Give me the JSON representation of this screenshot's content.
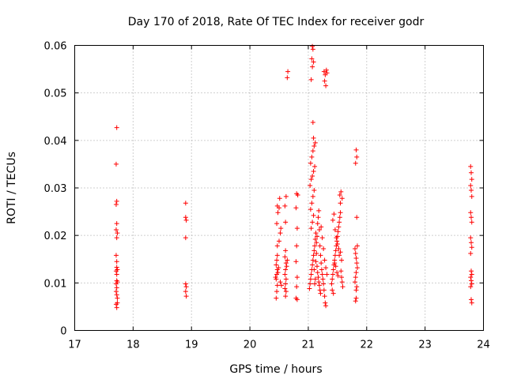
{
  "chart_data": {
    "type": "scatter",
    "title": "Day 170 of 2018, Rate Of TEC Index for receiver godr",
    "xlabel": "GPS time / hours",
    "ylabel": "ROTI / TECUs",
    "xlim": [
      17,
      24
    ],
    "ylim": [
      0,
      0.06
    ],
    "grid": true,
    "x_ticks": [
      "17",
      "18",
      "19",
      "20",
      "21",
      "22",
      "23",
      "24"
    ],
    "y_ticks": [
      "0",
      "0.01",
      "0.02",
      "0.03",
      "0.04",
      "0.05",
      "0.06"
    ],
    "marker": "+",
    "color": "#ff0000",
    "series": [
      {
        "name": "ROTI",
        "points": [
          [
            17.72,
            0.0427
          ],
          [
            17.71,
            0.035
          ],
          [
            17.72,
            0.0272
          ],
          [
            17.71,
            0.0265
          ],
          [
            17.72,
            0.0225
          ],
          [
            17.71,
            0.0212
          ],
          [
            17.73,
            0.0205
          ],
          [
            17.72,
            0.0195
          ],
          [
            17.71,
            0.0158
          ],
          [
            17.72,
            0.0145
          ],
          [
            17.72,
            0.0133
          ],
          [
            17.71,
            0.0125
          ],
          [
            17.73,
            0.0128
          ],
          [
            17.72,
            0.0118
          ],
          [
            17.72,
            0.0105
          ],
          [
            17.71,
            0.0098
          ],
          [
            17.73,
            0.0102
          ],
          [
            17.72,
            0.009
          ],
          [
            17.71,
            0.0082
          ],
          [
            17.72,
            0.0075
          ],
          [
            17.73,
            0.0068
          ],
          [
            17.71,
            0.0055
          ],
          [
            17.72,
            0.0048
          ],
          [
            17.73,
            0.0058
          ],
          [
            18.9,
            0.0268
          ],
          [
            18.9,
            0.0238
          ],
          [
            18.91,
            0.0232
          ],
          [
            18.9,
            0.0195
          ],
          [
            18.9,
            0.0098
          ],
          [
            18.91,
            0.0092
          ],
          [
            18.9,
            0.0082
          ],
          [
            18.91,
            0.0072
          ],
          [
            20.45,
            0.0068
          ],
          [
            20.46,
            0.0082
          ],
          [
            20.47,
            0.0095
          ],
          [
            20.45,
            0.0108
          ],
          [
            20.46,
            0.0118
          ],
          [
            20.47,
            0.0128
          ],
          [
            20.45,
            0.0138
          ],
          [
            20.46,
            0.0148
          ],
          [
            20.47,
            0.0158
          ],
          [
            20.48,
            0.0122
          ],
          [
            20.44,
            0.0112
          ],
          [
            20.49,
            0.0132
          ],
          [
            20.47,
            0.0178
          ],
          [
            20.46,
            0.0225
          ],
          [
            20.48,
            0.0248
          ],
          [
            20.47,
            0.0262
          ],
          [
            20.5,
            0.0258
          ],
          [
            20.51,
            0.0278
          ],
          [
            20.52,
            0.0205
          ],
          [
            20.53,
            0.0215
          ],
          [
            20.5,
            0.0188
          ],
          [
            20.52,
            0.0102
          ],
          [
            20.54,
            0.0095
          ],
          [
            20.6,
            0.0088
          ],
          [
            20.61,
            0.0098
          ],
          [
            20.62,
            0.0108
          ],
          [
            20.6,
            0.0118
          ],
          [
            20.61,
            0.0128
          ],
          [
            20.62,
            0.0142
          ],
          [
            20.6,
            0.0155
          ],
          [
            20.61,
            0.0168
          ],
          [
            20.63,
            0.0135
          ],
          [
            20.62,
            0.0082
          ],
          [
            20.61,
            0.0072
          ],
          [
            20.6,
            0.0262
          ],
          [
            20.62,
            0.0282
          ],
          [
            20.61,
            0.0228
          ],
          [
            20.64,
            0.0148
          ],
          [
            20.65,
            0.0545
          ],
          [
            20.64,
            0.0532
          ],
          [
            20.8,
            0.0288
          ],
          [
            20.82,
            0.0285
          ],
          [
            20.79,
            0.0258
          ],
          [
            20.81,
            0.0215
          ],
          [
            20.8,
            0.0178
          ],
          [
            20.79,
            0.0145
          ],
          [
            20.81,
            0.0112
          ],
          [
            20.8,
            0.0092
          ],
          [
            20.79,
            0.0068
          ],
          [
            20.81,
            0.0065
          ],
          [
            21.02,
            0.0088
          ],
          [
            21.03,
            0.0098
          ],
          [
            21.04,
            0.0108
          ],
          [
            21.05,
            0.0118
          ],
          [
            21.06,
            0.0128
          ],
          [
            21.07,
            0.0138
          ],
          [
            21.08,
            0.0148
          ],
          [
            21.09,
            0.0158
          ],
          [
            21.1,
            0.0168
          ],
          [
            21.11,
            0.0178
          ],
          [
            21.12,
            0.0192
          ],
          [
            21.13,
            0.0205
          ],
          [
            21.05,
            0.0215
          ],
          [
            21.07,
            0.0228
          ],
          [
            21.09,
            0.0242
          ],
          [
            21.04,
            0.0255
          ],
          [
            21.06,
            0.0268
          ],
          [
            21.08,
            0.0282
          ],
          [
            21.1,
            0.0295
          ],
          [
            21.03,
            0.0305
          ],
          [
            21.05,
            0.0318
          ],
          [
            21.07,
            0.0325
          ],
          [
            21.09,
            0.0335
          ],
          [
            21.11,
            0.0345
          ],
          [
            21.04,
            0.0352
          ],
          [
            21.06,
            0.0365
          ],
          [
            21.08,
            0.0378
          ],
          [
            21.1,
            0.0388
          ],
          [
            21.12,
            0.0395
          ],
          [
            21.09,
            0.0405
          ],
          [
            21.08,
            0.0438
          ],
          [
            21.05,
            0.0528
          ],
          [
            21.07,
            0.0555
          ],
          [
            21.06,
            0.0572
          ],
          [
            21.08,
            0.0592
          ],
          [
            21.07,
            0.0598
          ],
          [
            21.09,
            0.0565
          ],
          [
            21.14,
            0.0162
          ],
          [
            21.15,
            0.0135
          ],
          [
            21.16,
            0.0122
          ],
          [
            21.17,
            0.0112
          ],
          [
            21.18,
            0.0102
          ],
          [
            21.19,
            0.0095
          ],
          [
            21.2,
            0.0085
          ],
          [
            21.21,
            0.0078
          ],
          [
            21.13,
            0.0145
          ],
          [
            21.12,
            0.0108
          ],
          [
            21.11,
            0.0098
          ],
          [
            21.1,
            0.0128
          ],
          [
            21.14,
            0.0185
          ],
          [
            21.15,
            0.0198
          ],
          [
            21.16,
            0.0225
          ],
          [
            21.17,
            0.0238
          ],
          [
            21.18,
            0.0252
          ],
          [
            21.19,
            0.0212
          ],
          [
            21.2,
            0.0178
          ],
          [
            21.21,
            0.0158
          ],
          [
            21.22,
            0.0142
          ],
          [
            21.23,
            0.0128
          ],
          [
            21.24,
            0.0118
          ],
          [
            21.25,
            0.0108
          ],
          [
            21.26,
            0.0098
          ],
          [
            21.27,
            0.0085
          ],
          [
            21.28,
            0.0072
          ],
          [
            21.29,
            0.0058
          ],
          [
            21.3,
            0.0052
          ],
          [
            21.22,
            0.0218
          ],
          [
            21.24,
            0.0195
          ],
          [
            21.26,
            0.0172
          ],
          [
            21.28,
            0.0148
          ],
          [
            21.3,
            0.0132
          ],
          [
            21.32,
            0.0118
          ],
          [
            21.27,
            0.0545
          ],
          [
            21.29,
            0.0538
          ],
          [
            21.31,
            0.0548
          ],
          [
            21.28,
            0.0525
          ],
          [
            21.3,
            0.0515
          ],
          [
            21.32,
            0.0542
          ],
          [
            21.4,
            0.0098
          ],
          [
            21.41,
            0.0108
          ],
          [
            21.42,
            0.0118
          ],
          [
            21.43,
            0.0128
          ],
          [
            21.44,
            0.0138
          ],
          [
            21.45,
            0.0148
          ],
          [
            21.46,
            0.0158
          ],
          [
            21.47,
            0.0168
          ],
          [
            21.48,
            0.0178
          ],
          [
            21.49,
            0.0188
          ],
          [
            21.5,
            0.0198
          ],
          [
            21.51,
            0.0208
          ],
          [
            21.52,
            0.0218
          ],
          [
            21.53,
            0.0228
          ],
          [
            21.54,
            0.0238
          ],
          [
            21.55,
            0.0248
          ],
          [
            21.56,
            0.0125
          ],
          [
            21.57,
            0.0112
          ],
          [
            21.58,
            0.0102
          ],
          [
            21.59,
            0.0092
          ],
          [
            21.41,
            0.0085
          ],
          [
            21.43,
            0.0078
          ],
          [
            21.45,
            0.0142
          ],
          [
            21.47,
            0.0135
          ],
          [
            21.49,
            0.0122
          ],
          [
            21.51,
            0.0115
          ],
          [
            21.53,
            0.0158
          ],
          [
            21.55,
            0.0165
          ],
          [
            21.57,
            0.0148
          ],
          [
            21.42,
            0.0232
          ],
          [
            21.44,
            0.0245
          ],
          [
            21.46,
            0.0212
          ],
          [
            21.48,
            0.0195
          ],
          [
            21.5,
            0.0182
          ],
          [
            21.52,
            0.0172
          ],
          [
            21.54,
            0.0285
          ],
          [
            21.56,
            0.0292
          ],
          [
            21.58,
            0.0278
          ],
          [
            21.55,
            0.0268
          ],
          [
            21.8,
            0.0172
          ],
          [
            21.81,
            0.0162
          ],
          [
            21.82,
            0.0152
          ],
          [
            21.83,
            0.0142
          ],
          [
            21.84,
            0.0132
          ],
          [
            21.82,
            0.0122
          ],
          [
            21.81,
            0.0112
          ],
          [
            21.8,
            0.0102
          ],
          [
            21.83,
            0.0092
          ],
          [
            21.82,
            0.0085
          ],
          [
            21.84,
            0.0178
          ],
          [
            21.83,
            0.0238
          ],
          [
            21.82,
            0.0068
          ],
          [
            21.81,
            0.0062
          ],
          [
            21.82,
            0.038
          ],
          [
            21.83,
            0.0365
          ],
          [
            21.81,
            0.0352
          ],
          [
            23.78,
            0.0345
          ],
          [
            23.79,
            0.0332
          ],
          [
            23.8,
            0.0318
          ],
          [
            23.78,
            0.0305
          ],
          [
            23.79,
            0.0295
          ],
          [
            23.8,
            0.0282
          ],
          [
            23.78,
            0.0248
          ],
          [
            23.79,
            0.0238
          ],
          [
            23.8,
            0.0228
          ],
          [
            23.78,
            0.0195
          ],
          [
            23.79,
            0.0185
          ],
          [
            23.8,
            0.0175
          ],
          [
            23.78,
            0.0162
          ],
          [
            23.79,
            0.0125
          ],
          [
            23.8,
            0.0118
          ],
          [
            23.78,
            0.0112
          ],
          [
            23.79,
            0.0105
          ],
          [
            23.8,
            0.0098
          ],
          [
            23.78,
            0.0092
          ],
          [
            23.79,
            0.0065
          ],
          [
            23.8,
            0.0058
          ]
        ]
      }
    ]
  }
}
